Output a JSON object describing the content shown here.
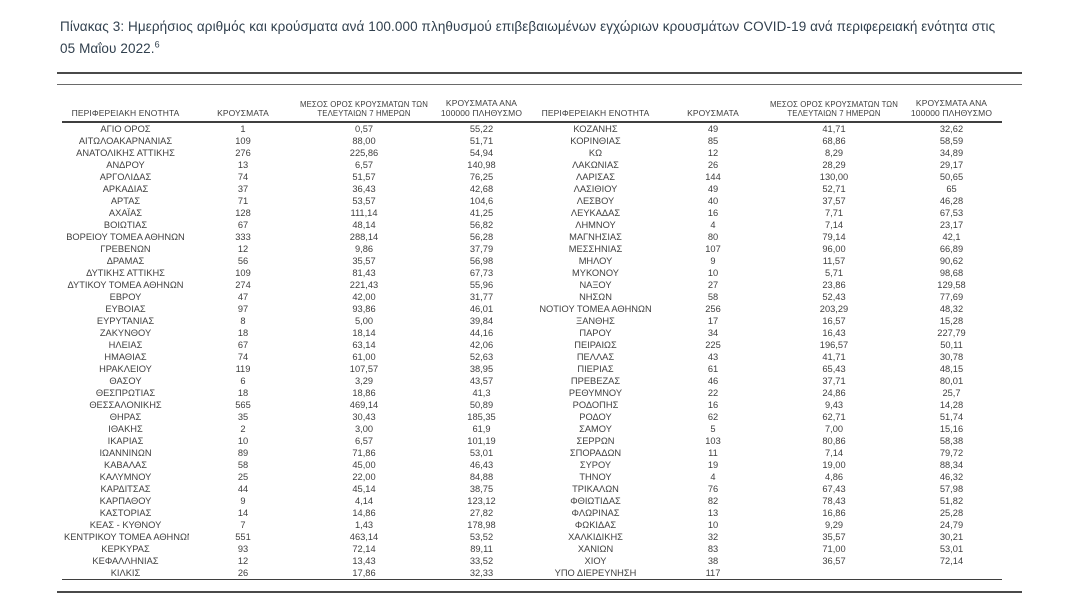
{
  "title": {
    "text": "Πίνακας 3:  Ημερήσιος αριθμός και κρούσματα ανά 100.000 πληθυσμού επιβεβαιωμένων εγχώριων κρουσμάτων COVID-19 ανά περιφερειακή ενότητα στις 05 Μαΐου 2022.",
    "footnote_ref": "6"
  },
  "table": {
    "headers": [
      "ΠΕΡΙΦΕΡΕΙΑΚΗ ΕΝΟΤΗΤΑ",
      "ΚΡΟΥΣΜΑΤΑ",
      "ΜΕΣΟΣ ΟΡΟΣ ΚΡΟΥΣΜΑΤΩΝ ΤΩΝ ΤΕΛΕΥΤΑΙΩΝ 7 ΗΜΕΡΩΝ",
      "ΚΡΟΥΣΜΑΤΑ ΑΝΑ 100000 ΠΛΗΘΥΣΜΟ"
    ],
    "left_rows": [
      [
        "ΑΓΙΟ ΟΡΟΣ",
        "1",
        "0,57",
        "55,22"
      ],
      [
        "ΑΙΤΩΛΟΑΚΑΡΝΑΝΙΑΣ",
        "109",
        "88,00",
        "51,71"
      ],
      [
        "ΑΝΑΤΟΛΙΚΗΣ ΑΤΤΙΚΗΣ",
        "276",
        "225,86",
        "54,94"
      ],
      [
        "ΑΝΔΡΟΥ",
        "13",
        "6,57",
        "140,98"
      ],
      [
        "ΑΡΓΟΛΙΔΑΣ",
        "74",
        "51,57",
        "76,25"
      ],
      [
        "ΑΡΚΑΔΙΑΣ",
        "37",
        "36,43",
        "42,68"
      ],
      [
        "ΑΡΤΑΣ",
        "71",
        "53,57",
        "104,6"
      ],
      [
        "ΑΧΑΪΑΣ",
        "128",
        "111,14",
        "41,25"
      ],
      [
        "ΒΟΙΩΤΙΑΣ",
        "67",
        "48,14",
        "56,82"
      ],
      [
        "ΒΟΡΕΙΟΥ ΤΟΜΕΑ ΑΘΗΝΩΝ",
        "333",
        "288,14",
        "56,28"
      ],
      [
        "ΓΡΕΒΕΝΩΝ",
        "12",
        "9,86",
        "37,79"
      ],
      [
        "ΔΡΑΜΑΣ",
        "56",
        "35,57",
        "56,98"
      ],
      [
        "ΔΥΤΙΚΗΣ ΑΤΤΙΚΗΣ",
        "109",
        "81,43",
        "67,73"
      ],
      [
        "ΔΥΤΙΚΟΥ ΤΟΜΕΑ ΑΘΗΝΩΝ",
        "274",
        "221,43",
        "55,96"
      ],
      [
        "ΕΒΡΟΥ",
        "47",
        "42,00",
        "31,77"
      ],
      [
        "ΕΥΒΟΙΑΣ",
        "97",
        "93,86",
        "46,01"
      ],
      [
        "ΕΥΡΥΤΑΝΙΑΣ",
        "8",
        "5,00",
        "39,84"
      ],
      [
        "ΖΑΚΥΝΘΟΥ",
        "18",
        "18,14",
        "44,16"
      ],
      [
        "ΗΛΕΙΑΣ",
        "67",
        "63,14",
        "42,06"
      ],
      [
        "ΗΜΑΘΙΑΣ",
        "74",
        "61,00",
        "52,63"
      ],
      [
        "ΗΡΑΚΛΕΙΟΥ",
        "119",
        "107,57",
        "38,95"
      ],
      [
        "ΘΑΣΟΥ",
        "6",
        "3,29",
        "43,57"
      ],
      [
        "ΘΕΣΠΡΩΤΙΑΣ",
        "18",
        "18,86",
        "41,3"
      ],
      [
        "ΘΕΣΣΑΛΟΝΙΚΗΣ",
        "565",
        "469,14",
        "50,89"
      ],
      [
        "ΘΗΡΑΣ",
        "35",
        "30,43",
        "185,35"
      ],
      [
        "ΙΘΑΚΗΣ",
        "2",
        "3,00",
        "61,9"
      ],
      [
        "ΙΚΑΡΙΑΣ",
        "10",
        "6,57",
        "101,19"
      ],
      [
        "ΙΩΑΝΝΙΝΩΝ",
        "89",
        "71,86",
        "53,01"
      ],
      [
        "ΚΑΒΑΛΑΣ",
        "58",
        "45,00",
        "46,43"
      ],
      [
        "ΚΑΛΥΜΝΟΥ",
        "25",
        "22,00",
        "84,88"
      ],
      [
        "ΚΑΡΔΙΤΣΑΣ",
        "44",
        "45,14",
        "38,75"
      ],
      [
        "ΚΑΡΠΑΘΟΥ",
        "9",
        "4,14",
        "123,12"
      ],
      [
        "ΚΑΣΤΟΡΙΑΣ",
        "14",
        "14,86",
        "27,82"
      ],
      [
        "ΚΕΑΣ - ΚΥΘΝΟΥ",
        "7",
        "1,43",
        "178,98"
      ],
      [
        "ΚΕΝΤΡΙΚΟΥ ΤΟΜΕΑ ΑΘΗΝΩΝ",
        "551",
        "463,14",
        "53,52"
      ],
      [
        "ΚΕΡΚΥΡΑΣ",
        "93",
        "72,14",
        "89,11"
      ],
      [
        "ΚΕΦΑΛΛΗΝΙΑΣ",
        "12",
        "13,43",
        "33,52"
      ],
      [
        "ΚΙΛΚΙΣ",
        "26",
        "17,86",
        "32,33"
      ]
    ],
    "right_rows": [
      [
        "ΚΟΖΑΝΗΣ",
        "49",
        "41,71",
        "32,62"
      ],
      [
        "ΚΟΡΙΝΘΙΑΣ",
        "85",
        "68,86",
        "58,59"
      ],
      [
        "ΚΩ",
        "12",
        "8,29",
        "34,89"
      ],
      [
        "ΛΑΚΩΝΙΑΣ",
        "26",
        "28,29",
        "29,17"
      ],
      [
        "ΛΑΡΙΣΑΣ",
        "144",
        "130,00",
        "50,65"
      ],
      [
        "ΛΑΣΙΘΙΟΥ",
        "49",
        "52,71",
        "65"
      ],
      [
        "ΛΕΣΒΟΥ",
        "40",
        "37,57",
        "46,28"
      ],
      [
        "ΛΕΥΚΑΔΑΣ",
        "16",
        "7,71",
        "67,53"
      ],
      [
        "ΛΗΜΝΟΥ",
        "4",
        "7,14",
        "23,17"
      ],
      [
        "ΜΑΓΝΗΣΙΑΣ",
        "80",
        "79,14",
        "42,1"
      ],
      [
        "ΜΕΣΣΗΝΙΑΣ",
        "107",
        "96,00",
        "66,89"
      ],
      [
        "ΜΗΛΟΥ",
        "9",
        "11,57",
        "90,62"
      ],
      [
        "ΜΥΚΟΝΟΥ",
        "10",
        "5,71",
        "98,68"
      ],
      [
        "ΝΑΞΟΥ",
        "27",
        "23,86",
        "129,58"
      ],
      [
        "ΝΗΣΩΝ",
        "58",
        "52,43",
        "77,69"
      ],
      [
        "ΝΟΤΙΟΥ ΤΟΜΕΑ ΑΘΗΝΩΝ",
        "256",
        "203,29",
        "48,32"
      ],
      [
        "ΞΑΝΘΗΣ",
        "17",
        "16,57",
        "15,28"
      ],
      [
        "ΠΑΡΟΥ",
        "34",
        "16,43",
        "227,79"
      ],
      [
        "ΠΕΙΡΑΙΩΣ",
        "225",
        "196,57",
        "50,11"
      ],
      [
        "ΠΕΛΛΑΣ",
        "43",
        "41,71",
        "30,78"
      ],
      [
        "ΠΙΕΡΙΑΣ",
        "61",
        "65,43",
        "48,15"
      ],
      [
        "ΠΡΕΒΕΖΑΣ",
        "46",
        "37,71",
        "80,01"
      ],
      [
        "ΡΕΘΥΜΝΟΥ",
        "22",
        "24,86",
        "25,7"
      ],
      [
        "ΡΟΔΟΠΗΣ",
        "16",
        "9,43",
        "14,28"
      ],
      [
        "ΡΟΔΟΥ",
        "62",
        "62,71",
        "51,74"
      ],
      [
        "ΣΑΜΟΥ",
        "5",
        "7,00",
        "15,16"
      ],
      [
        "ΣΕΡΡΩΝ",
        "103",
        "80,86",
        "58,38"
      ],
      [
        "ΣΠΟΡΑΔΩΝ",
        "11",
        "7,14",
        "79,72"
      ],
      [
        "ΣΥΡΟΥ",
        "19",
        "19,00",
        "88,34"
      ],
      [
        "ΤΗΝΟΥ",
        "4",
        "4,86",
        "46,32"
      ],
      [
        "ΤΡΙΚΑΛΩΝ",
        "76",
        "67,43",
        "57,98"
      ],
      [
        "ΦΘΙΩΤΙΔΑΣ",
        "82",
        "78,43",
        "51,82"
      ],
      [
        "ΦΛΩΡΙΝΑΣ",
        "13",
        "16,86",
        "25,28"
      ],
      [
        "ΦΩΚΙΔΑΣ",
        "10",
        "9,29",
        "24,79"
      ],
      [
        "ΧΑΛΚΙΔΙΚΗΣ",
        "32",
        "35,57",
        "30,21"
      ],
      [
        "ΧΑΝΙΩΝ",
        "83",
        "71,00",
        "53,01"
      ],
      [
        "ΧΙΟΥ",
        "38",
        "36,57",
        "72,14"
      ],
      [
        "ΥΠΟ ΔΙΕΡΕΥΝΗΣΗ",
        "117",
        "",
        ""
      ]
    ]
  }
}
